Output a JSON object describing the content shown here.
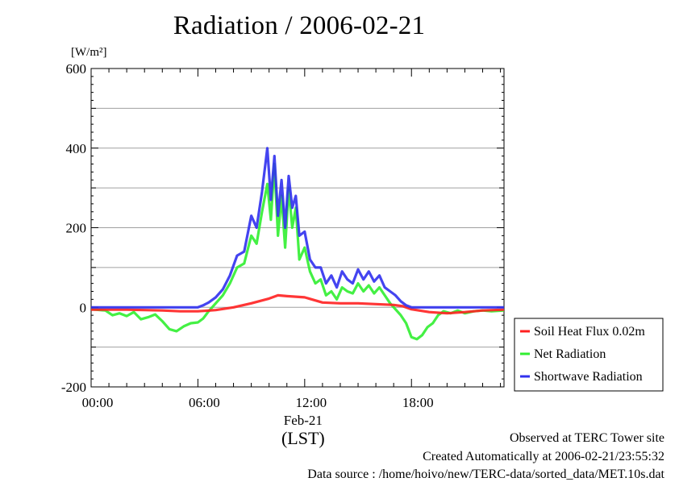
{
  "header": {
    "title": "Radiation / 2006-02-21"
  },
  "footer": {
    "observed": "Observed at TERC Tower site",
    "created": "Created Automatically at 2006-02-21/23:55:32",
    "source": "Data source : /home/hoivo/new/TERC-data/sorted_data/MET.10s.dat"
  },
  "chart_data": {
    "type": "line",
    "title": "Radiation / 2006-02-21",
    "xlabel": "(LST)",
    "ylabel": "[W/m²]",
    "date_label": "Feb-21",
    "xlim": [
      0,
      23.2
    ],
    "ylim": [
      -200,
      600
    ],
    "yticks": [
      -200,
      0,
      200,
      400,
      600
    ],
    "ytick_labels": [
      "-200",
      "0",
      "200",
      "400",
      "600"
    ],
    "xticks": [
      0,
      6,
      12,
      18
    ],
    "xtick_labels": [
      "00:00",
      "06:00",
      "12:00",
      "18:00"
    ],
    "grid": true,
    "legend_position": "right-bottom",
    "series": [
      {
        "name": "Soil Heat Flux 0.02m",
        "color": "#ff2020",
        "x": [
          0,
          2,
          4,
          5,
          6,
          7,
          8,
          9,
          10,
          10.5,
          11,
          12,
          13,
          14,
          15,
          16,
          17,
          17.5,
          18,
          19,
          20,
          21,
          22,
          23.2
        ],
        "y": [
          -6,
          -6,
          -8,
          -10,
          -10,
          -7,
          0,
          10,
          22,
          30,
          28,
          25,
          12,
          10,
          10,
          8,
          6,
          3,
          -5,
          -12,
          -15,
          -12,
          -8,
          -6
        ]
      },
      {
        "name": "Net Radiation",
        "color": "#30ee30",
        "x": [
          0,
          0.8,
          1.2,
          1.6,
          2,
          2.4,
          2.8,
          3.2,
          3.6,
          4,
          4.4,
          4.8,
          5.2,
          5.6,
          6,
          6.3,
          6.6,
          7,
          7.4,
          7.8,
          8.2,
          8.6,
          9,
          9.3,
          9.6,
          9.9,
          10.1,
          10.3,
          10.5,
          10.7,
          10.9,
          11.1,
          11.3,
          11.5,
          11.7,
          12,
          12.3,
          12.6,
          12.9,
          13.2,
          13.5,
          13.8,
          14.1,
          14.4,
          14.7,
          15,
          15.3,
          15.6,
          15.9,
          16.2,
          16.5,
          16.8,
          17.1,
          17.4,
          17.7,
          18,
          18.3,
          18.6,
          18.9,
          19.2,
          19.5,
          19.8,
          20.2,
          20.6,
          21,
          21.5,
          22,
          22.5,
          23.2
        ],
        "y": [
          -5,
          -8,
          -20,
          -15,
          -22,
          -12,
          -30,
          -25,
          -18,
          -35,
          -55,
          -60,
          -48,
          -40,
          -38,
          -28,
          -10,
          10,
          30,
          60,
          100,
          110,
          180,
          160,
          240,
          310,
          220,
          360,
          180,
          280,
          150,
          300,
          200,
          250,
          120,
          150,
          90,
          60,
          70,
          30,
          40,
          20,
          50,
          40,
          35,
          60,
          40,
          55,
          35,
          50,
          30,
          10,
          -5,
          -20,
          -40,
          -75,
          -80,
          -70,
          -50,
          -40,
          -20,
          -10,
          -15,
          -8,
          -15,
          -10,
          -8,
          -10,
          -8
        ]
      },
      {
        "name": "Shortwave Radiation",
        "color": "#3030ee",
        "x": [
          0,
          2,
          4,
          6,
          6.3,
          6.6,
          7,
          7.4,
          7.8,
          8.2,
          8.6,
          9,
          9.3,
          9.6,
          9.9,
          10.1,
          10.3,
          10.5,
          10.7,
          10.9,
          11.1,
          11.3,
          11.5,
          11.7,
          12,
          12.3,
          12.6,
          12.9,
          13.2,
          13.5,
          13.8,
          14.1,
          14.4,
          14.7,
          15,
          15.3,
          15.6,
          15.9,
          16.2,
          16.5,
          16.8,
          17.1,
          17.4,
          17.7,
          18,
          18.3,
          19,
          20,
          21,
          22,
          23.2
        ],
        "y": [
          0,
          0,
          0,
          0,
          5,
          12,
          25,
          45,
          80,
          130,
          140,
          230,
          200,
          290,
          400,
          270,
          380,
          230,
          320,
          200,
          330,
          250,
          280,
          180,
          190,
          120,
          100,
          100,
          60,
          80,
          50,
          90,
          70,
          60,
          95,
          70,
          90,
          65,
          80,
          50,
          40,
          30,
          15,
          5,
          0,
          0,
          0,
          0,
          0,
          0,
          0
        ]
      }
    ]
  }
}
